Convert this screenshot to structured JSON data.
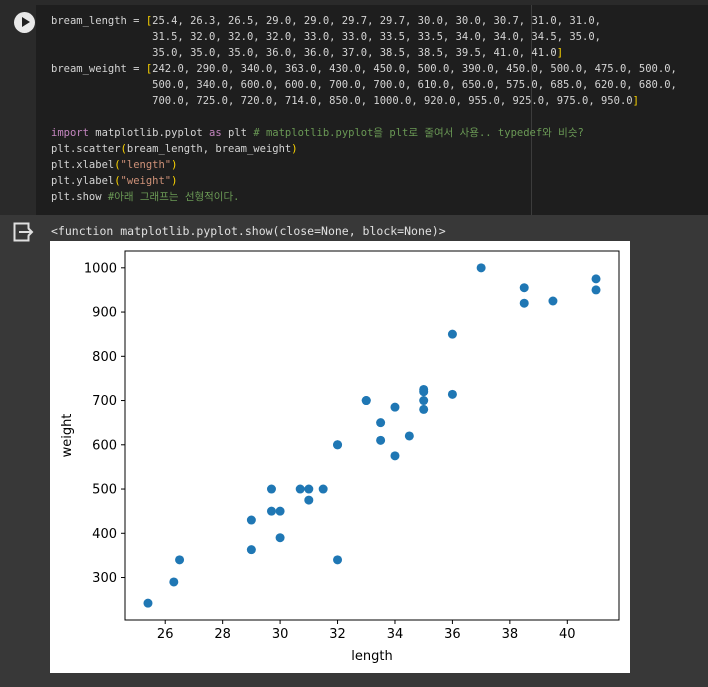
{
  "cell": {
    "code_lines": [
      [
        {
          "t": "bream_length = "
        },
        {
          "t": "[",
          "c": "b"
        },
        {
          "t": "25.4, 26.3, 26.5, 29.0, 29.0, 29.7, 29.7, 30.0, 30.0, 30.7, 31.0, 31.0,"
        }
      ],
      [
        {
          "t": "                31.5, 32.0, 32.0, 32.0, 33.0, 33.0, 33.5, 33.5, 34.0, 34.0, 34.5, 35.0,"
        }
      ],
      [
        {
          "t": "                35.0, 35.0, 35.0, 36.0, 36.0, 37.0, 38.5, 38.5, 39.5, 41.0, 41.0"
        },
        {
          "t": "]",
          "c": "b"
        }
      ],
      [
        {
          "t": "bream_weight = "
        },
        {
          "t": "[",
          "c": "b"
        },
        {
          "t": "242.0, 290.0, 340.0, 363.0, 430.0, 450.0, 500.0, 390.0, 450.0, 500.0, 475.0, 500.0,"
        }
      ],
      [
        {
          "t": "                500.0, 340.0, 600.0, 600.0, 700.0, 700.0, 610.0, 650.0, 575.0, 685.0, 620.0, 680.0,"
        }
      ],
      [
        {
          "t": "                700.0, 725.0, 720.0, 714.0, 850.0, 1000.0, 920.0, 955.0, 925.0, 975.0, 950.0"
        },
        {
          "t": "]",
          "c": "b"
        }
      ],
      [
        {
          "t": ""
        }
      ],
      [
        {
          "t": "import",
          "c": "k"
        },
        {
          "t": " matplotlib.pyplot "
        },
        {
          "t": "as",
          "c": "k"
        },
        {
          "t": " plt "
        },
        {
          "t": "# matplotlib.pyplot을 plt로 줄여서 사용.. typedef와 비슷?",
          "c": "c"
        }
      ],
      [
        {
          "t": "plt.scatter"
        },
        {
          "t": "(",
          "c": "b"
        },
        {
          "t": "bream_length, bream_weight"
        },
        {
          "t": ")",
          "c": "b"
        }
      ],
      [
        {
          "t": "plt.xlabel"
        },
        {
          "t": "(",
          "c": "b"
        },
        {
          "t": "\"length\"",
          "c": "s"
        },
        {
          "t": ")",
          "c": "b"
        }
      ],
      [
        {
          "t": "plt.ylabel"
        },
        {
          "t": "(",
          "c": "b"
        },
        {
          "t": "\"weight\"",
          "c": "s"
        },
        {
          "t": ")",
          "c": "b"
        }
      ],
      [
        {
          "t": "plt.show "
        },
        {
          "t": "#아래 그래프는 선형적이다.",
          "c": "c"
        }
      ]
    ]
  },
  "output": {
    "text": "<function matplotlib.pyplot.show(close=None, block=None)>"
  },
  "colors": {
    "marker": "#1f77b4"
  },
  "icons": {
    "run": "play-icon",
    "output": "output-arrow-icon"
  },
  "chart_data": {
    "type": "scatter",
    "xlabel": "length",
    "ylabel": "weight",
    "xlim": [
      24.6,
      41.8
    ],
    "ylim": [
      204,
      1038
    ],
    "xticks": [
      26,
      28,
      30,
      32,
      34,
      36,
      38,
      40
    ],
    "yticks": [
      300,
      400,
      500,
      600,
      700,
      800,
      900,
      1000
    ],
    "x": [
      25.4,
      26.3,
      26.5,
      29.0,
      29.0,
      29.7,
      29.7,
      30.0,
      30.0,
      30.7,
      31.0,
      31.0,
      31.5,
      32.0,
      32.0,
      32.0,
      33.0,
      33.0,
      33.5,
      33.5,
      34.0,
      34.0,
      34.5,
      35.0,
      35.0,
      35.0,
      35.0,
      36.0,
      36.0,
      37.0,
      38.5,
      38.5,
      39.5,
      41.0,
      41.0
    ],
    "y": [
      242.0,
      290.0,
      340.0,
      363.0,
      430.0,
      450.0,
      500.0,
      390.0,
      450.0,
      500.0,
      475.0,
      500.0,
      500.0,
      340.0,
      600.0,
      600.0,
      700.0,
      700.0,
      610.0,
      650.0,
      575.0,
      685.0,
      620.0,
      680.0,
      700.0,
      725.0,
      720.0,
      714.0,
      850.0,
      1000.0,
      920.0,
      955.0,
      925.0,
      975.0,
      950.0
    ]
  }
}
